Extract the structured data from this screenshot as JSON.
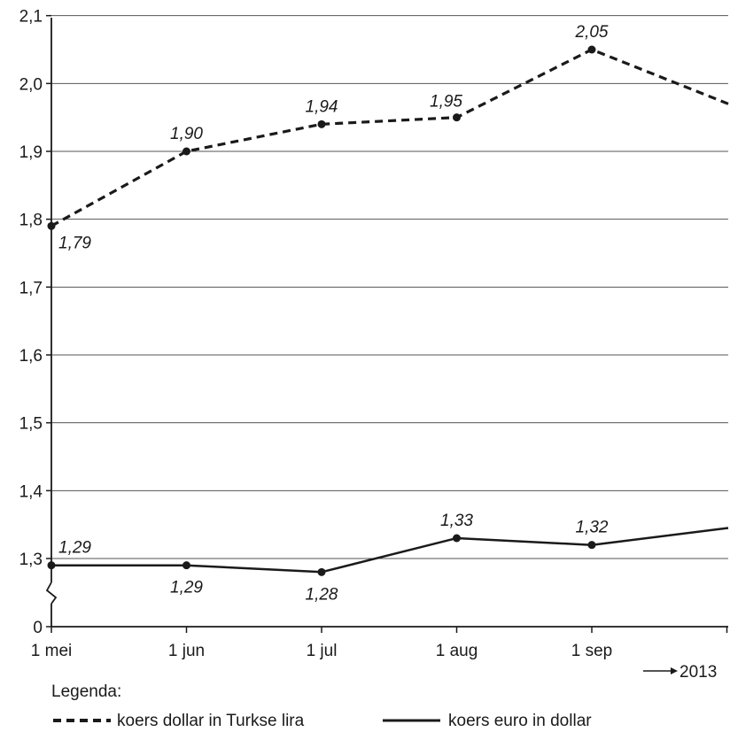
{
  "chart_data": {
    "type": "line",
    "categories": [
      "1 mei",
      "1 jun",
      "1 jul",
      "1 aug",
      "1 sep"
    ],
    "year_label": "2013",
    "y_ticks": [
      "0",
      "1,3",
      "1,4",
      "1,5",
      "1,6",
      "1,7",
      "1,8",
      "1,9",
      "2,0",
      "2,1"
    ],
    "y_break": "axis break between 0 and 1,3",
    "ylim": [
      1.25,
      2.1
    ],
    "grid": true,
    "series": [
      {
        "name": "koers dollar in Turkse lira",
        "style": "dashed",
        "x": [
          "1 mei",
          "1 jun",
          "1 jul",
          "1 aug",
          "1 sep",
          "end"
        ],
        "values": [
          1.79,
          1.9,
          1.94,
          1.95,
          2.05,
          1.97
        ],
        "labels": [
          "1,79",
          "1,90",
          "1,94",
          "1,95",
          "2,05",
          ""
        ]
      },
      {
        "name": "koers euro in dollar",
        "style": "solid",
        "x": [
          "1 mei",
          "1 jun",
          "1 jul",
          "1 aug",
          "1 sep",
          "end"
        ],
        "values": [
          1.29,
          1.29,
          1.28,
          1.33,
          1.32,
          1.345
        ],
        "labels": [
          "1,29",
          "1,29",
          "1,28",
          "1,33",
          "1,32",
          ""
        ]
      }
    ],
    "legend": {
      "title": "Legenda:",
      "placement": "bottom-left"
    }
  }
}
